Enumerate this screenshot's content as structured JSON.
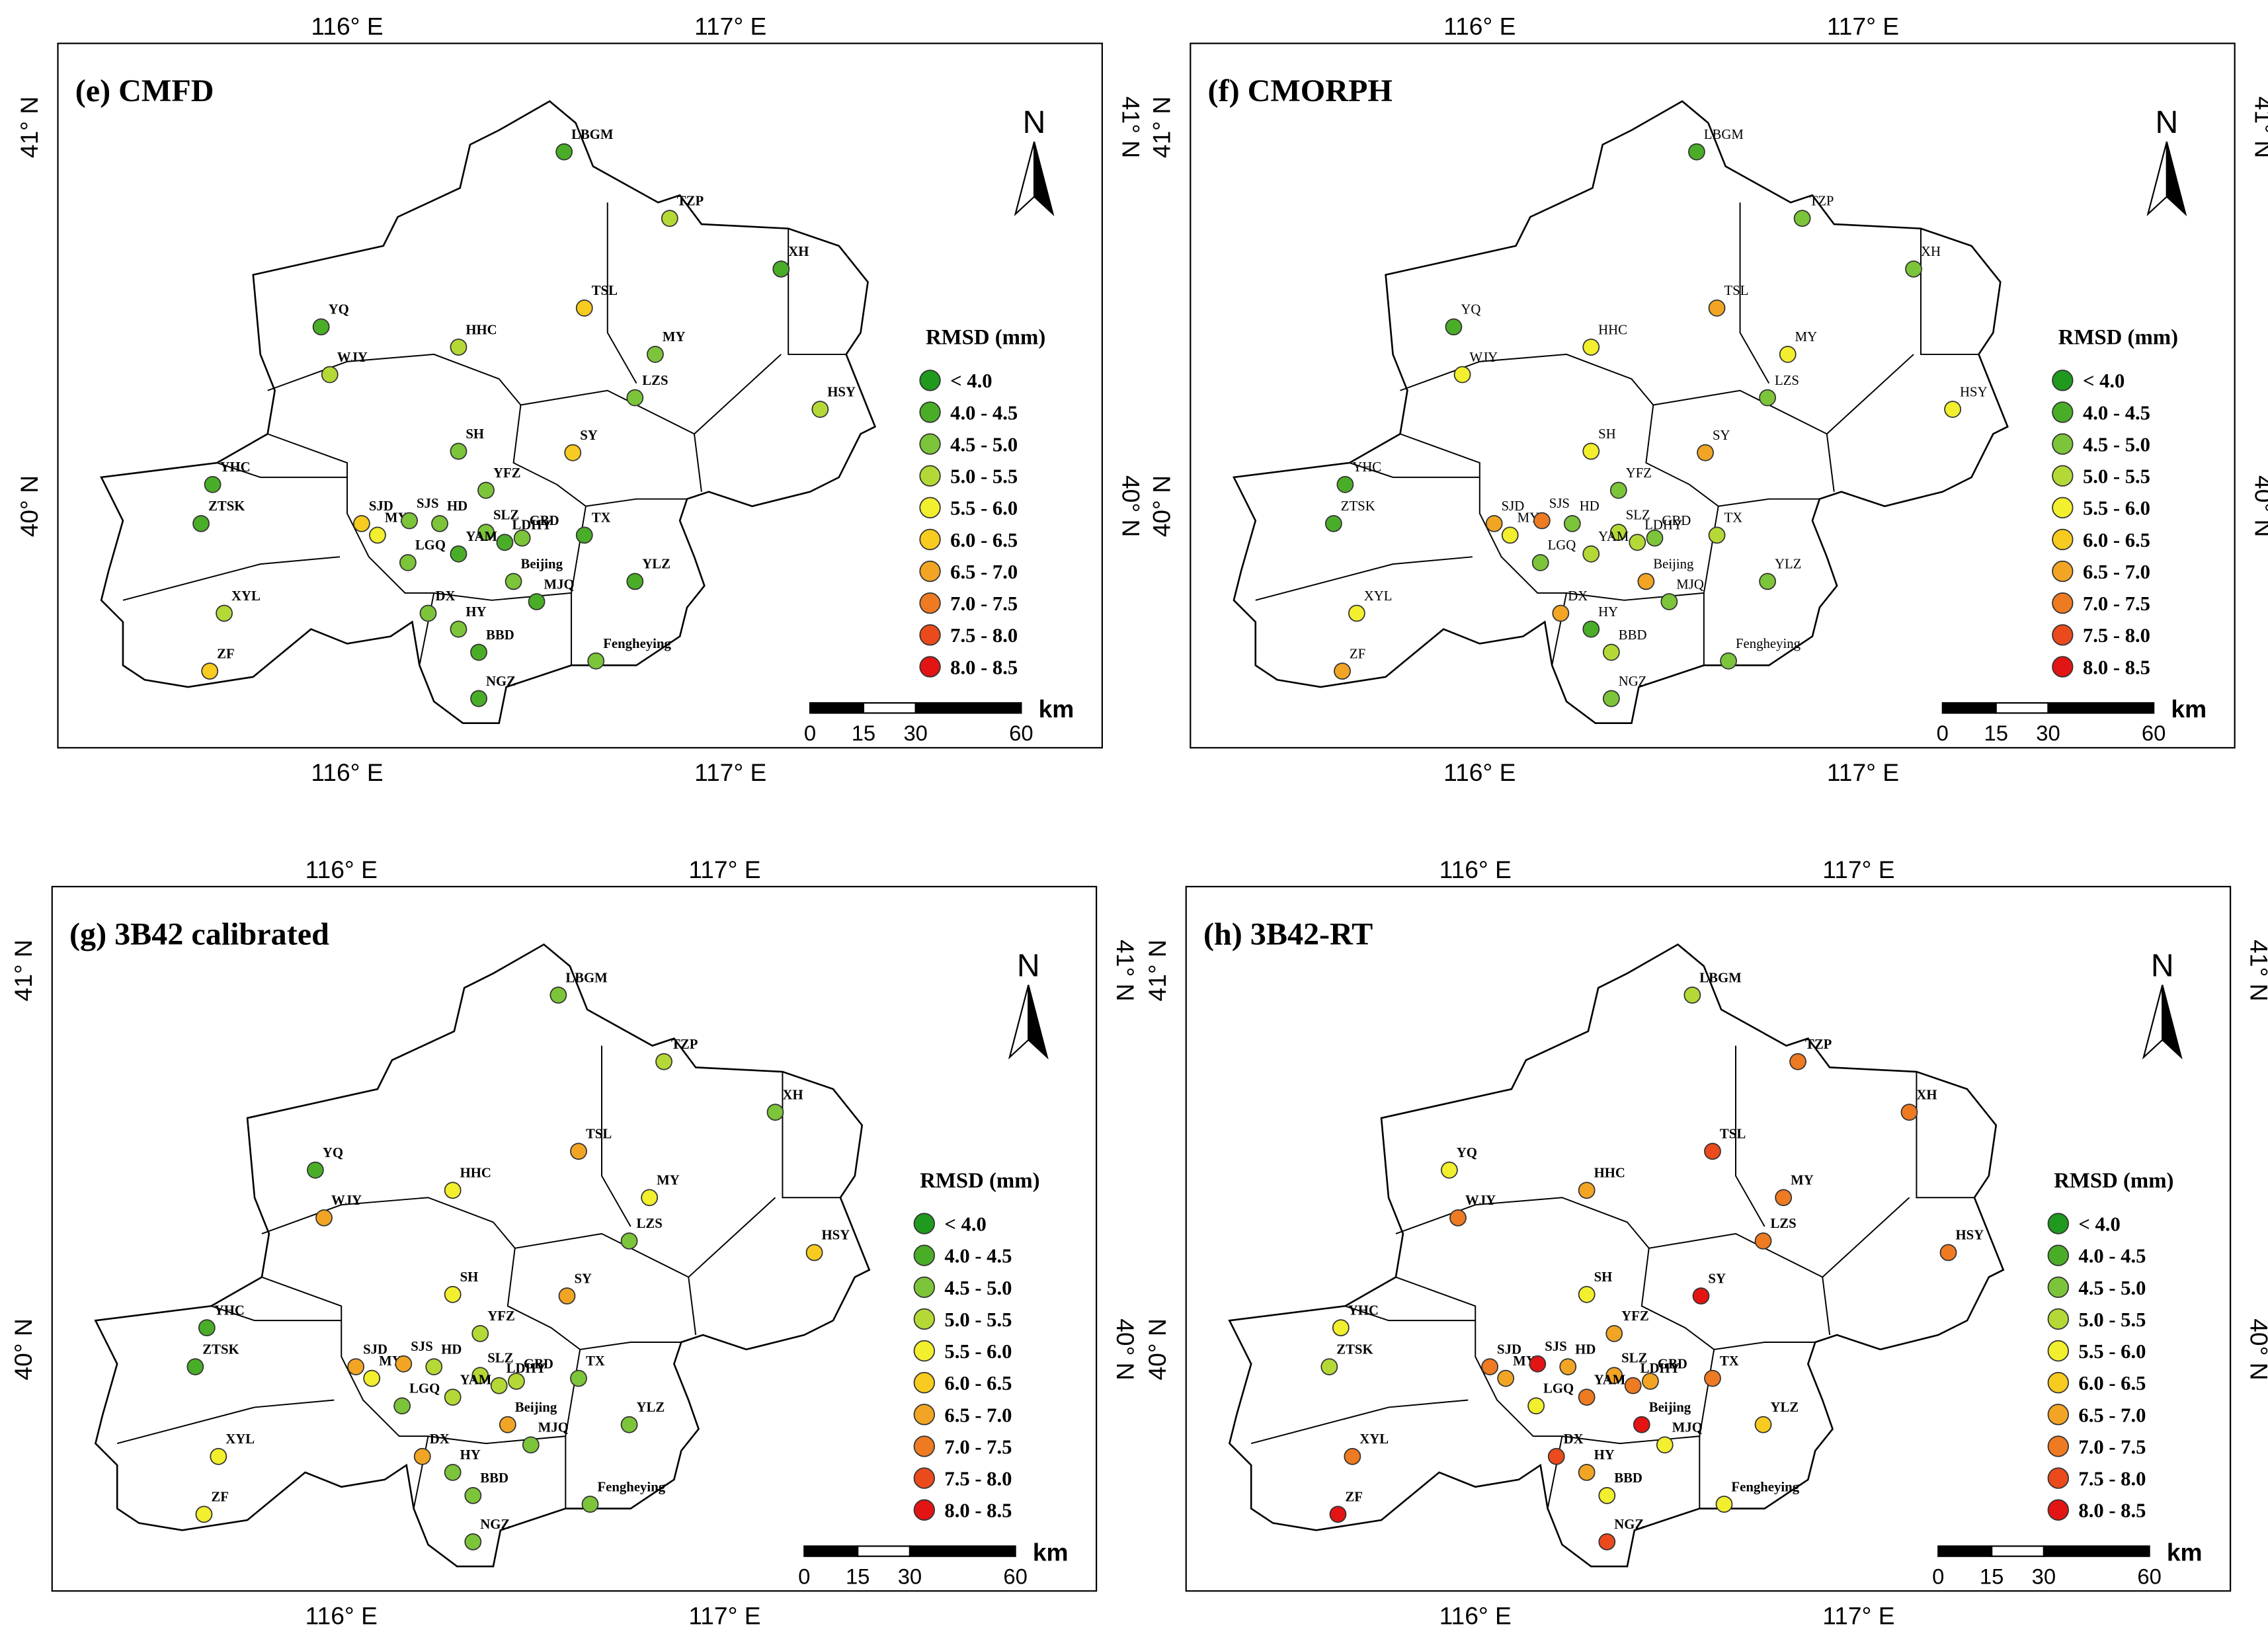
{
  "panels": [
    {
      "title": "(e) CMFD",
      "station_colors": [
        "#4aad28",
        "#b4d936",
        "#4aad28",
        "#4aad28",
        "#f7cb1f",
        "#b4d936",
        "#b4d936",
        "#7cc43a",
        "#7cc43a",
        "#b4d936",
        "#7cc43a",
        "#f7cb1f",
        "#4aad28",
        "#4aad28",
        "#7cc43a",
        "#f7cb1f",
        "#f2ef2e",
        "#7cc43a",
        "#7cc43a",
        "#7cc43a",
        "#4aad28",
        "#4aad28",
        "#7cc43a",
        "#4aad28",
        "#7cc43a",
        "#7cc43a",
        "#4aad28",
        "#4aad28",
        "#b4d936",
        "#7cc43a",
        "#7cc43a",
        "#4aad28",
        "#7cc43a",
        "#f7cb1f",
        "#4aad28"
      ]
    },
    {
      "title": "(f) CMORPH",
      "station_colors": [
        "#4aad28",
        "#7cc43a",
        "#7cc43a",
        "#4aad28",
        "#f2a524",
        "#f2ef2e",
        "#f2ef2e",
        "#f2ef2e",
        "#7cc43a",
        "#f2ef2e",
        "#f2ef2e",
        "#f2a524",
        "#4aad28",
        "#4aad28",
        "#7cc43a",
        "#f2a524",
        "#f2ef2e",
        "#ee7a22",
        "#7cc43a",
        "#b4d936",
        "#b4d936",
        "#b4d936",
        "#7cc43a",
        "#b4d936",
        "#7cc43a",
        "#f2a524",
        "#7cc43a",
        "#7cc43a",
        "#f2ef2e",
        "#f2a524",
        "#4aad28",
        "#b4d936",
        "#7cc43a",
        "#f2a524",
        "#7cc43a"
      ]
    },
    {
      "title": "(g) 3B42 calibrated",
      "station_colors": [
        "#7cc43a",
        "#b4d936",
        "#7cc43a",
        "#4aad28",
        "#f2a524",
        "#f2ef2e",
        "#f2a524",
        "#f2ef2e",
        "#7cc43a",
        "#f7cb1f",
        "#f2ef2e",
        "#f2a524",
        "#4aad28",
        "#4aad28",
        "#b4d936",
        "#f2a524",
        "#f2ef2e",
        "#f2a524",
        "#b4d936",
        "#b4d936",
        "#b4d936",
        "#b4d936",
        "#b4d936",
        "#7cc43a",
        "#7cc43a",
        "#f2a524",
        "#7cc43a",
        "#7cc43a",
        "#f2ef2e",
        "#f2a524",
        "#7cc43a",
        "#7cc43a",
        "#7cc43a",
        "#f2ef2e",
        "#7cc43a"
      ]
    },
    {
      "title": "(h) 3B42-RT",
      "station_colors": [
        "#b4d936",
        "#ee7a22",
        "#ee7a22",
        "#f2ef2e",
        "#ea4a1c",
        "#f2a524",
        "#ee7a22",
        "#ee7a22",
        "#ee7a22",
        "#ee7a22",
        "#f2ef2e",
        "#e31414",
        "#f2ef2e",
        "#b4d936",
        "#f2a524",
        "#ee7a22",
        "#f2a524",
        "#e31414",
        "#f2a524",
        "#f2a524",
        "#ee7a22",
        "#ee7a22",
        "#f2a524",
        "#ee7a22",
        "#f2ef2e",
        "#e31414",
        "#f2ef2e",
        "#f7cb1f",
        "#ee7a22",
        "#ea4a1c",
        "#f2a524",
        "#f2ef2e",
        "#f2ef2e",
        "#e31414",
        "#ea4a1c"
      ]
    }
  ],
  "stations": [
    "LBGM",
    "TZP",
    "XH",
    "YQ",
    "TSL",
    "HHC",
    "WJY",
    "MY",
    "LZS",
    "HSY",
    "SH",
    "SY",
    "YHC",
    "ZTSK",
    "YFZ",
    "SJD",
    "MY",
    "SJS",
    "HD",
    "SLZ",
    "YAM",
    "LDHY",
    "GBD",
    "TX",
    "LGQ",
    "Beijing",
    "MJQ",
    "YLZ",
    "XYL",
    "DX",
    "HY",
    "BBD",
    "Fengheying",
    "ZF",
    "NGZ"
  ],
  "lon_labels": [
    "116° E",
    "117° E"
  ],
  "lat_labels": [
    "41° N",
    "40° N"
  ],
  "legend": {
    "title": "RMSD (mm)",
    "labels": [
      "< 4.0",
      "4.0 - 4.5",
      "4.5 - 5.0",
      "5.0 - 5.5",
      "5.5 - 6.0",
      "6.0 - 6.5",
      "6.5 - 7.0",
      "7.0 - 7.5",
      "7.5 - 8.0",
      "8.0 - 8.5"
    ],
    "colors": [
      "#1f9a1f",
      "#4aad28",
      "#7cc43a",
      "#b4d936",
      "#f2ef2e",
      "#f7cb1f",
      "#f2a524",
      "#ee7a22",
      "#ea4a1c",
      "#e31414"
    ]
  },
  "north": "N",
  "scale": {
    "labels": [
      "0",
      "15",
      "30",
      "60"
    ],
    "unit": "km"
  }
}
